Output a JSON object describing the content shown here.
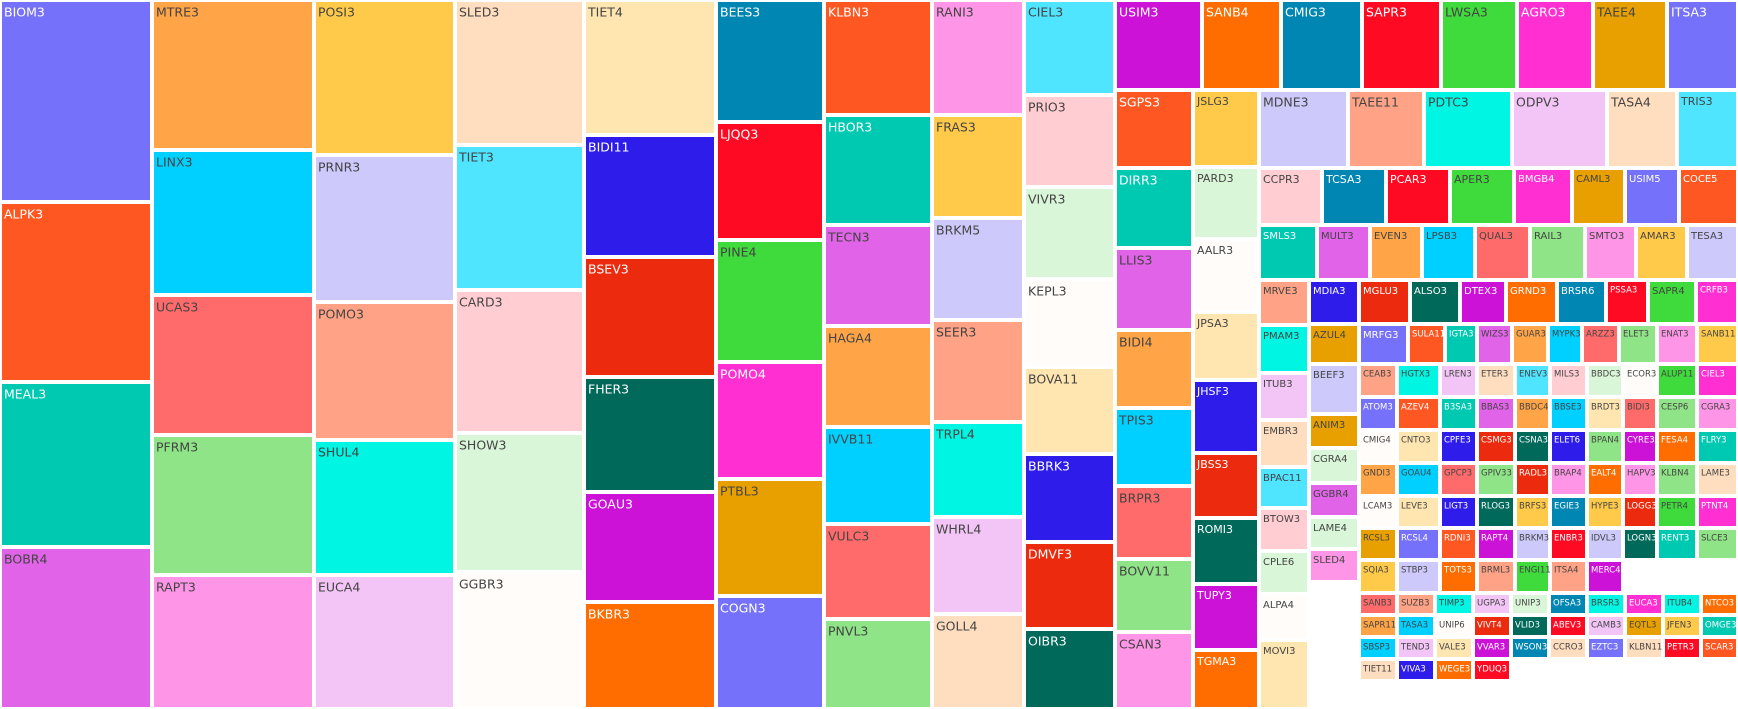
{
  "chart_data": {
    "type": "treemap",
    "tiles": [
      {
        "label": "BIOM3",
        "color": "#7671FB"
      },
      {
        "label": "ALPK3",
        "color": "#FF5722"
      },
      {
        "label": "MEAL3",
        "color": "#00C9B1"
      },
      {
        "label": "BOBR4",
        "color": "#E163E8"
      },
      {
        "label": "MTRE3",
        "color": "#FFA447"
      },
      {
        "label": "LINX3",
        "color": "#00D0FF"
      },
      {
        "label": "UCAS3",
        "color": "#FF6B6B"
      },
      {
        "label": "PFRM3",
        "color": "#8EE486"
      },
      {
        "label": "RAPT3",
        "color": "#FF95E6"
      },
      {
        "label": "POSI3",
        "color": "#FFC94A"
      },
      {
        "label": "PRNR3",
        "color": "#CDC9FB"
      },
      {
        "label": "POMO3",
        "color": "#FFA285"
      },
      {
        "label": "SHUL4",
        "color": "#00F5E3"
      },
      {
        "label": "EUCA4",
        "color": "#F3C5F6"
      },
      {
        "label": "SLED3",
        "color": "#FFDDBF"
      },
      {
        "label": "TIET3",
        "color": "#4FE4FF"
      },
      {
        "label": "CARD3",
        "color": "#FFCDD2"
      },
      {
        "label": "SHOW3",
        "color": "#DAF6D8"
      },
      {
        "label": "GGBR3",
        "color": "#FFFCFA"
      },
      {
        "label": "TIET4",
        "color": "#FFE6B0"
      },
      {
        "label": "BIDI11",
        "color": "#2E1CEB"
      },
      {
        "label": "BSEV3",
        "color": "#EC2B0E"
      },
      {
        "label": "FHER3",
        "color": "#006959"
      },
      {
        "label": "GOAU3",
        "color": "#CC12D6"
      },
      {
        "label": "BKBR3",
        "color": "#FF6D00"
      },
      {
        "label": "BEES3",
        "color": "#0086B3"
      },
      {
        "label": "LJQQ3",
        "color": "#FF0A23"
      },
      {
        "label": "PINE4",
        "color": "#3FDA3B"
      },
      {
        "label": "POMO4",
        "color": "#FF2FD2"
      },
      {
        "label": "PTBL3",
        "color": "#E8A000"
      },
      {
        "label": "COGN3",
        "color": "#7671FB"
      },
      {
        "label": "KLBN3",
        "color": "#FF5722"
      },
      {
        "label": "HBOR3",
        "color": "#00C9B1"
      },
      {
        "label": "TECN3",
        "color": "#E163E8"
      },
      {
        "label": "HAGA4",
        "color": "#FFA447"
      },
      {
        "label": "IVVB11",
        "color": "#00D0FF"
      },
      {
        "label": "VULC3",
        "color": "#FF6B6B"
      },
      {
        "label": "PNVL3",
        "color": "#8EE486"
      },
      {
        "label": "RANI3",
        "color": "#FF95E6"
      },
      {
        "label": "FRAS3",
        "color": "#FFC94A"
      },
      {
        "label": "BRKM5",
        "color": "#CDC9FB"
      },
      {
        "label": "SEER3",
        "color": "#FFA285"
      },
      {
        "label": "TRPL4",
        "color": "#00F5E3"
      },
      {
        "label": "WHRL4",
        "color": "#F3C5F6"
      },
      {
        "label": "GOLL4",
        "color": "#FFDDBF"
      },
      {
        "label": "CIEL3",
        "color": "#4FE4FF"
      },
      {
        "label": "PRIO3",
        "color": "#FFCDD2"
      },
      {
        "label": "VIVR3",
        "color": "#DAF6D8"
      },
      {
        "label": "KEPL3",
        "color": "#FFFCFA"
      },
      {
        "label": "BOVA11",
        "color": "#FFE6B0"
      },
      {
        "label": "BBRK3",
        "color": "#2E1CEB"
      },
      {
        "label": "DMVF3",
        "color": "#EC2B0E"
      },
      {
        "label": "OIBR3",
        "color": "#006959"
      },
      {
        "label": "USIM3",
        "color": "#CC12D6"
      },
      {
        "label": "SANB4",
        "color": "#FF6D00"
      },
      {
        "label": "CMIG3",
        "color": "#0086B3"
      },
      {
        "label": "SAPR3",
        "color": "#FF0A23"
      },
      {
        "label": "LWSA3",
        "color": "#3FDA3B"
      },
      {
        "label": "AGRO3",
        "color": "#FF2FD2"
      },
      {
        "label": "TAEE4",
        "color": "#E8A000"
      },
      {
        "label": "ITSA3",
        "color": "#7671FB"
      },
      {
        "label": "SGPS3",
        "color": "#FF5722"
      },
      {
        "label": "DIRR3",
        "color": "#00C9B1"
      },
      {
        "label": "LLIS3",
        "color": "#E163E8"
      },
      {
        "label": "BIDI4",
        "color": "#FFA447"
      },
      {
        "label": "TPIS3",
        "color": "#00D0FF"
      },
      {
        "label": "BRPR3",
        "color": "#FF6B6B"
      },
      {
        "label": "BOVV11",
        "color": "#8EE486"
      },
      {
        "label": "CSAN3",
        "color": "#FF95E6"
      },
      {
        "label": "JSLG3",
        "color": "#FFC94A"
      },
      {
        "label": "PARD3",
        "color": "#DAF6D8"
      },
      {
        "label": "AALR3",
        "color": "#FFFCFA"
      },
      {
        "label": "JPSA3",
        "color": "#FFE6B0"
      },
      {
        "label": "JHSF3",
        "color": "#2E1CEB"
      },
      {
        "label": "JBSS3",
        "color": "#EC2B0E"
      },
      {
        "label": "ROMI3",
        "color": "#006959"
      },
      {
        "label": "TUPY3",
        "color": "#CC12D6"
      },
      {
        "label": "TGMA3",
        "color": "#FF6D00"
      },
      {
        "label": "MDNE3",
        "color": "#CDC9FB"
      },
      {
        "label": "TAEE11",
        "color": "#FFA285"
      },
      {
        "label": "PDTC3",
        "color": "#00F5E3"
      },
      {
        "label": "ODPV3",
        "color": "#F3C5F6"
      },
      {
        "label": "TASA4",
        "color": "#FFDDBF"
      },
      {
        "label": "TRIS3",
        "color": "#4FE4FF"
      },
      {
        "label": "CCPR3",
        "color": "#FFCDD2"
      },
      {
        "label": "TCSA3",
        "color": "#0086B3"
      },
      {
        "label": "PCAR3",
        "color": "#FF0A23"
      },
      {
        "label": "APER3",
        "color": "#3FDA3B"
      },
      {
        "label": "BMGB4",
        "color": "#FF2FD2"
      },
      {
        "label": "CAML3",
        "color": "#E8A000"
      },
      {
        "label": "USIM5",
        "color": "#7671FB"
      },
      {
        "label": "COCE5",
        "color": "#FF5722"
      },
      {
        "label": "SMLS3",
        "color": "#00C9B1"
      },
      {
        "label": "MULT3",
        "color": "#E163E8"
      },
      {
        "label": "EVEN3",
        "color": "#FFA447"
      },
      {
        "label": "LPSB3",
        "color": "#00D0FF"
      },
      {
        "label": "QUAL3",
        "color": "#FF6B6B"
      },
      {
        "label": "RAIL3",
        "color": "#8EE486"
      },
      {
        "label": "SMTO3",
        "color": "#FF95E6"
      },
      {
        "label": "AMAR3",
        "color": "#FFC94A"
      },
      {
        "label": "TESA3",
        "color": "#CDC9FB"
      },
      {
        "label": "MRVE3",
        "color": "#FFA285"
      },
      {
        "label": "PMAM3",
        "color": "#00F5E3"
      },
      {
        "label": "ITUB3",
        "color": "#F3C5F6"
      },
      {
        "label": "EMBR3",
        "color": "#FFDDBF"
      },
      {
        "label": "BPAC11",
        "color": "#4FE4FF"
      },
      {
        "label": "BTOW3",
        "color": "#FFCDD2"
      },
      {
        "label": "CPLE6",
        "color": "#DAF6D8"
      },
      {
        "label": "ALPA4",
        "color": "#FFFCFA"
      },
      {
        "label": "MOVI3",
        "color": "#FFE6B0"
      },
      {
        "label": "MDIA3",
        "color": "#2E1CEB"
      },
      {
        "label": "MGLU3",
        "color": "#EC2B0E"
      },
      {
        "label": "ALSO3",
        "color": "#006959"
      },
      {
        "label": "DTEX3",
        "color": "#CC12D6"
      },
      {
        "label": "GRND3",
        "color": "#FF6D00"
      },
      {
        "label": "BRSR6",
        "color": "#0086B3"
      },
      {
        "label": "PSSA3",
        "color": "#FF0A23"
      },
      {
        "label": "SAPR4",
        "color": "#3FDA3B"
      },
      {
        "label": "CRFB3",
        "color": "#FF2FD2"
      },
      {
        "label": "AZUL4",
        "color": "#E8A000"
      },
      {
        "label": "MRFG3",
        "color": "#7671FB"
      },
      {
        "label": "SULA11",
        "color": "#FF5722"
      },
      {
        "label": "IGTA3",
        "color": "#00C9B1"
      },
      {
        "label": "WIZS3",
        "color": "#E163E8"
      },
      {
        "label": "GUAR3",
        "color": "#FFA447"
      },
      {
        "label": "MYPK3",
        "color": "#00D0FF"
      },
      {
        "label": "ARZZ3",
        "color": "#FF6B6B"
      },
      {
        "label": "ELET3",
        "color": "#8EE486"
      },
      {
        "label": "ENAT3",
        "color": "#FF95E6"
      },
      {
        "label": "SANB11",
        "color": "#FFC94A"
      },
      {
        "label": "BEEF3",
        "color": "#CDC9FB"
      },
      {
        "label": "CEAB3",
        "color": "#FFA285"
      },
      {
        "label": "HGTX3",
        "color": "#00F5E3"
      },
      {
        "label": "LREN3",
        "color": "#F3C5F6"
      },
      {
        "label": "ETER3",
        "color": "#FFDDBF"
      },
      {
        "label": "ENEV3",
        "color": "#4FE4FF"
      },
      {
        "label": "MILS3",
        "color": "#FFCDD2"
      },
      {
        "label": "BBDC3",
        "color": "#DAF6D8"
      },
      {
        "label": "ECOR3",
        "color": "#FFFCFA"
      },
      {
        "label": "ALUP11",
        "color": "#3FDA3B"
      },
      {
        "label": "CIEL3",
        "color": "#FF2FD2"
      },
      {
        "label": "ANIM3",
        "color": "#E8A000"
      },
      {
        "label": "ATOM3",
        "color": "#7671FB"
      },
      {
        "label": "AZEV4",
        "color": "#FF5722"
      },
      {
        "label": "B3SA3",
        "color": "#00C9B1"
      },
      {
        "label": "BBAS3",
        "color": "#E163E8"
      },
      {
        "label": "BBDC4",
        "color": "#FFA447"
      },
      {
        "label": "BBSE3",
        "color": "#00D0FF"
      },
      {
        "label": "BRDT3",
        "color": "#FFE6B0"
      },
      {
        "label": "BIDI3",
        "color": "#FF6B6B"
      },
      {
        "label": "CESP6",
        "color": "#8EE486"
      },
      {
        "label": "CGRA3",
        "color": "#FF95E6"
      },
      {
        "label": "CGRA4",
        "color": "#DAF6D8"
      },
      {
        "label": "CMIG4",
        "color": "#FFFCFA"
      },
      {
        "label": "CNTO3",
        "color": "#FFE6B0"
      },
      {
        "label": "CPFE3",
        "color": "#2E1CEB"
      },
      {
        "label": "CSMG3",
        "color": "#EC2B0E"
      },
      {
        "label": "CSNA3",
        "color": "#006959"
      },
      {
        "label": "ELET6",
        "color": "#2E1CEB"
      },
      {
        "label": "BPAN4",
        "color": "#8EE486"
      },
      {
        "label": "CYRE3",
        "color": "#CC12D6"
      },
      {
        "label": "FESA4",
        "color": "#FF6D00"
      },
      {
        "label": "FLRY3",
        "color": "#00C9B1"
      },
      {
        "label": "GGBR4",
        "color": "#E163E8"
      },
      {
        "label": "GNDI3",
        "color": "#FFA447"
      },
      {
        "label": "GOAU4",
        "color": "#00D0FF"
      },
      {
        "label": "GPCP3",
        "color": "#FF6B6B"
      },
      {
        "label": "GPIV33",
        "color": "#8EE486"
      },
      {
        "label": "RADL3",
        "color": "#EC2B0E"
      },
      {
        "label": "BRAP4",
        "color": "#FF95E6"
      },
      {
        "label": "EALT4",
        "color": "#FF6D00"
      },
      {
        "label": "HAPV3",
        "color": "#FF95E6"
      },
      {
        "label": "KLBN4",
        "color": "#8EE486"
      },
      {
        "label": "LAME3",
        "color": "#FFDDBF"
      },
      {
        "label": "LAME4",
        "color": "#DAF6D8"
      },
      {
        "label": "LCAM3",
        "color": "#FFFCFA"
      },
      {
        "label": "LEVE3",
        "color": "#FFE6B0"
      },
      {
        "label": "LIGT3",
        "color": "#2E1CEB"
      },
      {
        "label": "RLOG3",
        "color": "#006959"
      },
      {
        "label": "BRFS3",
        "color": "#FFC94A"
      },
      {
        "label": "EGIE3",
        "color": "#0086B3"
      },
      {
        "label": "HYPE3",
        "color": "#FFC94A"
      },
      {
        "label": "LOGG3",
        "color": "#EC2B0E"
      },
      {
        "label": "PETR4",
        "color": "#3FDA3B"
      },
      {
        "label": "PTNT4",
        "color": "#FF2FD2"
      },
      {
        "label": "RCSL3",
        "color": "#E8A000"
      },
      {
        "label": "RCSL4",
        "color": "#7671FB"
      },
      {
        "label": "RDNI3",
        "color": "#FF5722"
      },
      {
        "label": "RAPT4",
        "color": "#CC12D6"
      },
      {
        "label": "BRKM3",
        "color": "#CDC9FB"
      },
      {
        "label": "ENBR3",
        "color": "#FF0A23"
      },
      {
        "label": "IDVL3",
        "color": "#CDC9FB"
      },
      {
        "label": "LOGN3",
        "color": "#006959"
      },
      {
        "label": "RENT3",
        "color": "#00C9B1"
      },
      {
        "label": "SLCE3",
        "color": "#8EE486"
      },
      {
        "label": "SLED4",
        "color": "#FF95E6"
      },
      {
        "label": "SQIA3",
        "color": "#FFC94A"
      },
      {
        "label": "STBP3",
        "color": "#CDC9FB"
      },
      {
        "label": "TOTS3",
        "color": "#FF6D00"
      },
      {
        "label": "BRML3",
        "color": "#FFA285"
      },
      {
        "label": "ENGI11",
        "color": "#3FDA3B"
      },
      {
        "label": "ITSA4",
        "color": "#FFA285"
      },
      {
        "label": "MERC4",
        "color": "#CC12D6"
      },
      {
        "label": "SANB3",
        "color": "#FF6B6B"
      },
      {
        "label": "SUZB3",
        "color": "#FFA285"
      },
      {
        "label": "TIMP3",
        "color": "#00F5E3"
      },
      {
        "label": "UGPA3",
        "color": "#F3C5F6"
      },
      {
        "label": "UNIP3",
        "color": "#DAF6D8"
      },
      {
        "label": "OFSA3",
        "color": "#0086B3"
      },
      {
        "label": "BRSR3",
        "color": "#00F5E3"
      },
      {
        "label": "EUCA3",
        "color": "#FF2FD2"
      },
      {
        "label": "ITUB4",
        "color": "#00F5E3"
      },
      {
        "label": "NTCO3",
        "color": "#FF6D00"
      },
      {
        "label": "SAPR11",
        "color": "#FFA447"
      },
      {
        "label": "TASA3",
        "color": "#00D0FF"
      },
      {
        "label": "UNIP6",
        "color": "#FFFCFA"
      },
      {
        "label": "VIVT4",
        "color": "#EC2B0E"
      },
      {
        "label": "VLID3",
        "color": "#006959"
      },
      {
        "label": "ABEV3",
        "color": "#FF0A23"
      },
      {
        "label": "CAMB3",
        "color": "#F3C5F6"
      },
      {
        "label": "EQTL3",
        "color": "#E8A000"
      },
      {
        "label": "JFEN3",
        "color": "#FFC94A"
      },
      {
        "label": "OMGE3",
        "color": "#00C9B1"
      },
      {
        "label": "SBSP3",
        "color": "#00D0FF"
      },
      {
        "label": "TEND3",
        "color": "#F3C5F6"
      },
      {
        "label": "VALE3",
        "color": "#FFE6B0"
      },
      {
        "label": "VVAR3",
        "color": "#CC12D6"
      },
      {
        "label": "WSON33",
        "color": "#0086B3"
      },
      {
        "label": "CCRO3",
        "color": "#FFDDBF"
      },
      {
        "label": "EZTC3",
        "color": "#7671FB"
      },
      {
        "label": "KLBN11",
        "color": "#FFDDBF"
      },
      {
        "label": "PETR3",
        "color": "#FF0A23"
      },
      {
        "label": "SCAR3",
        "color": "#FF5722"
      },
      {
        "label": "TIET11",
        "color": "#FFDDBF"
      },
      {
        "label": "VIVA3",
        "color": "#2E1CEB"
      },
      {
        "label": "WEGE3",
        "color": "#FF6D00"
      },
      {
        "label": "YDUQ3",
        "color": "#FF0A23"
      }
    ]
  }
}
